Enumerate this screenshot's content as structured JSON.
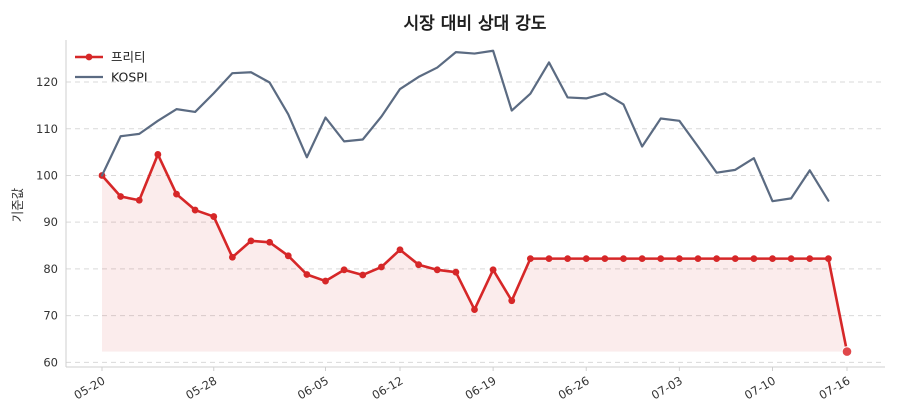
{
  "chart_data": {
    "type": "line",
    "title": "시장 대비 상대 강도",
    "ylabel": "기준값",
    "xlabel": "",
    "ylim": [
      59,
      129
    ],
    "yticks": [
      60,
      70,
      80,
      90,
      100,
      110,
      120
    ],
    "grid": true,
    "legend": "top-left",
    "x": [
      "05-20",
      "05-21",
      "05-22",
      "05-23",
      "05-24",
      "05-27",
      "05-28",
      "05-29",
      "05-30",
      "05-31",
      "06-03",
      "06-04",
      "06-05",
      "06-07",
      "06-10",
      "06-11",
      "06-12",
      "06-13",
      "06-14",
      "06-17",
      "06-18",
      "06-19",
      "06-20",
      "06-21",
      "06-24",
      "06-25",
      "06-26",
      "06-27",
      "06-28",
      "07-01",
      "07-02",
      "07-03",
      "07-04",
      "07-05",
      "07-08",
      "07-09",
      "07-10",
      "07-11",
      "07-12",
      "07-15",
      "07-16"
    ],
    "xticks": [
      "05-20",
      "05-28",
      "06-05",
      "06-12",
      "06-19",
      "06-26",
      "07-03",
      "07-10",
      "07-16"
    ],
    "series": [
      {
        "name": "프리티",
        "color": "#d62728",
        "fill": true,
        "values": [
          100,
          95.5,
          94.7,
          104.5,
          96,
          92.6,
          91.2,
          82.5,
          86,
          85.7,
          82.8,
          78.8,
          77.4,
          79.8,
          78.7,
          80.4,
          84.1,
          80.9,
          79.8,
          79.3,
          71.3,
          79.8,
          73.2,
          82.2,
          82.2,
          82.2,
          82.2,
          82.2,
          82.2,
          82.2,
          82.2,
          82.2,
          82.2,
          82.2,
          82.2,
          82.2,
          82.2,
          82.2,
          82.2,
          82.2,
          62.3
        ]
      },
      {
        "name": "KOSPI",
        "color": "#5b6b82",
        "fill": false,
        "values": [
          100,
          108.4,
          108.9,
          111.7,
          114.2,
          113.6,
          117.6,
          121.9,
          122.1,
          119.9,
          113.1,
          103.9,
          112.4,
          107.3,
          107.7,
          112.6,
          118.5,
          121.1,
          123.1,
          126.4,
          126.1,
          126.7,
          113.9,
          117.5,
          124.2,
          116.7,
          116.5,
          117.6,
          115.2,
          106.2,
          112.2,
          111.7,
          106.2,
          100.6,
          101.2,
          103.7,
          94.5,
          95.1,
          101.1,
          94.6,
          null
        ]
      }
    ]
  }
}
